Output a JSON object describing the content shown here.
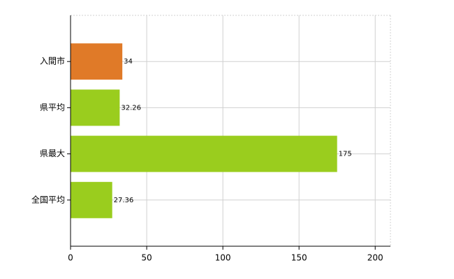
{
  "chart_data": {
    "type": "bar",
    "orientation": "horizontal",
    "categories": [
      "入間市",
      "県平均",
      "県最大",
      "全国平均"
    ],
    "values": [
      34,
      32.26,
      175,
      27.36
    ],
    "colors": [
      "#e07a28",
      "#9acd1e",
      "#9acd1e",
      "#9acd1e"
    ],
    "xlim": [
      0,
      210
    ],
    "xticks": [
      0,
      50,
      100,
      150,
      200
    ],
    "grid": true
  }
}
